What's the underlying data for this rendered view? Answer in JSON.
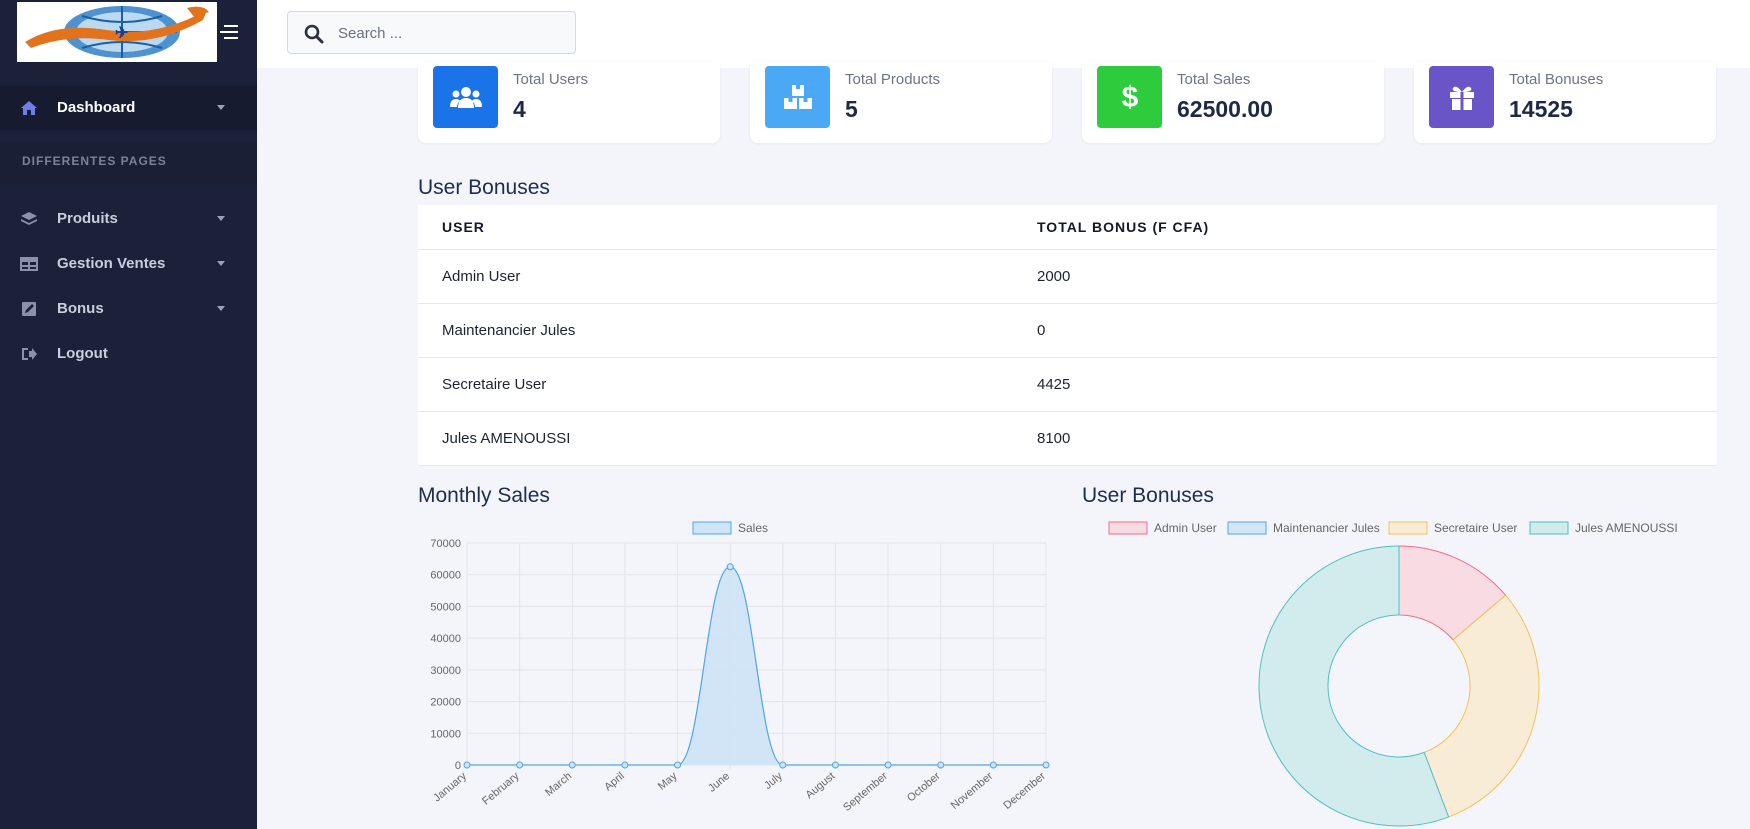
{
  "sidebar": {
    "items": [
      {
        "label": "Dashboard",
        "icon": "home-icon"
      },
      {
        "label": "Produits",
        "icon": "layers-icon"
      },
      {
        "label": "Gestion Ventes",
        "icon": "table-icon"
      },
      {
        "label": "Bonus",
        "icon": "edit-icon"
      },
      {
        "label": "Logout",
        "icon": "sign-out-icon"
      }
    ],
    "section_title": "DIFFERENTES PAGES"
  },
  "search": {
    "placeholder": "Search ..."
  },
  "stats": [
    {
      "label": "Total Users",
      "value": "4",
      "icon": "users-icon",
      "color": "#1a73e8"
    },
    {
      "label": "Total Products",
      "value": "5",
      "icon": "boxes-icon",
      "color": "#4aa8f5"
    },
    {
      "label": "Total Sales",
      "value": "62500.00",
      "icon": "dollar-icon",
      "color": "#2ccc3c"
    },
    {
      "label": "Total Bonuses",
      "value": "14525",
      "icon": "gift-icon",
      "color": "#6a55c8"
    }
  ],
  "bonus_table": {
    "title": "User Bonuses",
    "headers": [
      "USER",
      "TOTAL BONUS (F CFA)"
    ],
    "rows": [
      {
        "user": "Admin User",
        "bonus": "2000"
      },
      {
        "user": "Maintenancier Jules",
        "bonus": "0"
      },
      {
        "user": "Secretaire User",
        "bonus": "4425"
      },
      {
        "user": "Jules AMENOUSSI",
        "bonus": "8100"
      }
    ]
  },
  "monthly_title": "Monthly Sales",
  "donut_title": "User Bonuses",
  "chart_data": [
    {
      "type": "line",
      "title": "Monthly Sales",
      "categories": [
        "January",
        "February",
        "March",
        "April",
        "May",
        "June",
        "July",
        "August",
        "September",
        "October",
        "November",
        "December"
      ],
      "series": [
        {
          "name": "Sales",
          "values": [
            0,
            0,
            0,
            0,
            0,
            62500,
            0,
            0,
            0,
            0,
            0,
            0
          ]
        }
      ],
      "ylim": [
        0,
        70000
      ],
      "yticks": [
        0,
        10000,
        20000,
        30000,
        40000,
        50000,
        60000,
        70000
      ],
      "fill": true,
      "grid": true,
      "legend": "top-center",
      "colors": {
        "line": "#4fa6e6",
        "fill": "#cfe4f7"
      }
    },
    {
      "type": "pie",
      "title": "User Bonuses",
      "categories": [
        "Admin User",
        "Maintenancier Jules",
        "Secretaire User",
        "Jules AMENOUSSI"
      ],
      "values": [
        2000,
        0,
        4425,
        8100
      ],
      "donut": true,
      "legend": "top-center",
      "colors": [
        {
          "border": "#f06c8a",
          "fill": "#f9dbe3"
        },
        {
          "border": "#4fa6e6",
          "fill": "#d3e6f6"
        },
        {
          "border": "#f3c25a",
          "fill": "#f8ecd6"
        },
        {
          "border": "#4fbfc4",
          "fill": "#d2ecee"
        }
      ]
    }
  ]
}
